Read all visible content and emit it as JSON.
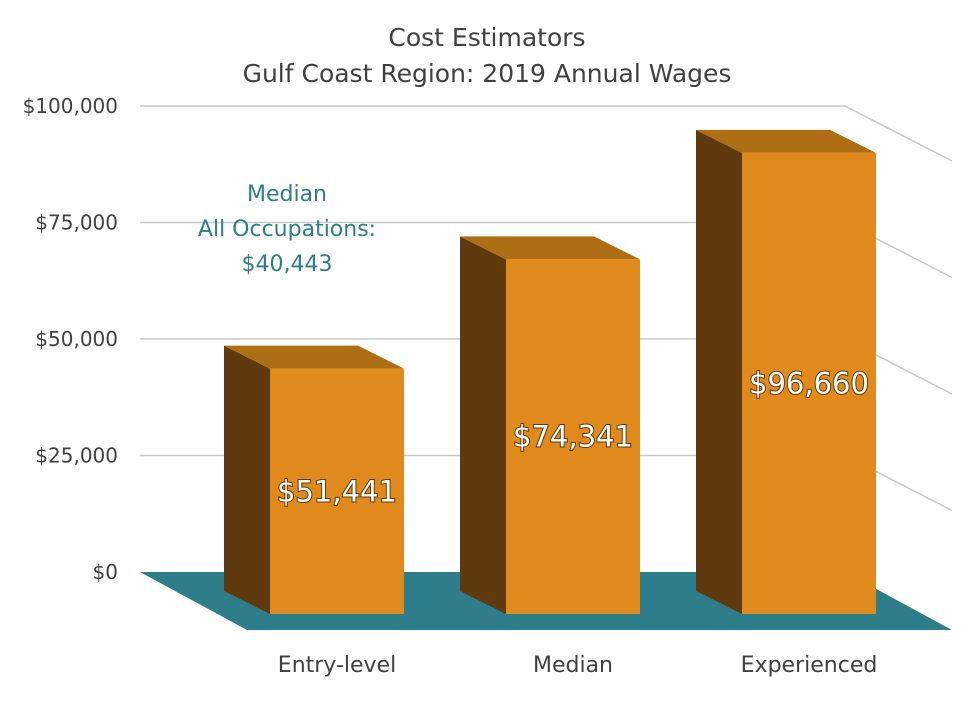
{
  "chart_data": {
    "type": "bar",
    "title": "Cost Estimators",
    "subtitle": "Gulf Coast Region: 2019 Annual Wages",
    "categories": [
      "Entry-level",
      "Median",
      "Experienced"
    ],
    "values": [
      51441,
      74341,
      96660
    ],
    "value_labels": [
      "$51,441",
      "$74,341",
      "$96,660"
    ],
    "yticks": [
      0,
      25000,
      50000,
      75000,
      100000
    ],
    "ytick_labels": [
      "$0",
      "$25,000",
      "$50,000",
      "$75,000",
      "$100,000"
    ],
    "ylim": [
      0,
      100000
    ],
    "xlabel": "",
    "ylabel": "",
    "annotation": {
      "line1": "Median",
      "line2": "All Occupations:",
      "line3": "$40,443"
    },
    "colors": {
      "bar_front": "#E08A1E",
      "bar_side": "#5E3A0E",
      "bar_top": "#B06E14",
      "floor": "#2E7D8A",
      "grid": "#C8C8C8",
      "annotation": "#2E7D8A"
    }
  }
}
